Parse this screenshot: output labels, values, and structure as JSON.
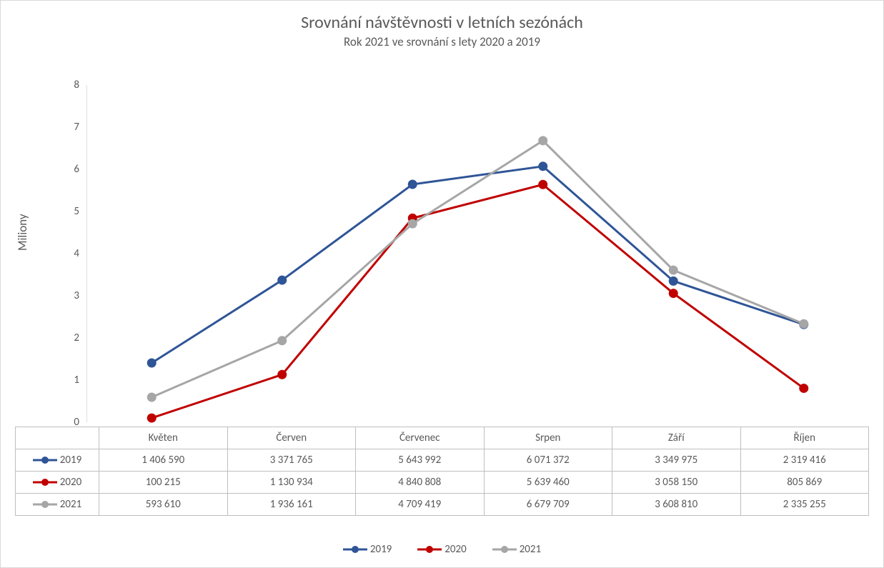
{
  "chart": {
    "type": "line",
    "title": "Srovnání návštěvnosti v letních sezónách",
    "subtitle": "Rok 2021 ve srovnání s lety 2020 a 2019",
    "ylabel": "Miliony",
    "categories": [
      "Květen",
      "Červen",
      "Červenec",
      "Srpen",
      "Září",
      "Říjen"
    ],
    "ylim": [
      0,
      8
    ],
    "ytick_step": 1,
    "yticks": [
      "0",
      "1",
      "2",
      "3",
      "4",
      "5",
      "6",
      "7",
      "8"
    ],
    "background_color": "#ffffff",
    "border_color": "#d9d9d9",
    "grid_color": "#d9d9d9",
    "axis_line_color": "#bfbfbf",
    "text_color": "#595959",
    "title_fontsize": 24,
    "subtitle_fontsize": 17,
    "label_fontsize": 17,
    "tick_fontsize": 15,
    "line_width": 3,
    "marker_size": 6,
    "marker_style": "circle",
    "series": [
      {
        "name": "2019",
        "color": "#2f5597",
        "values": [
          1406590,
          3371765,
          5643992,
          6071372,
          3349975,
          2319416
        ],
        "labels": [
          "1 406 590",
          "3 371 765",
          "5 643 992",
          "6 071 372",
          "3 349 975",
          "2 319 416"
        ]
      },
      {
        "name": "2020",
        "color": "#c00000",
        "values": [
          100215,
          1130934,
          4840808,
          5639460,
          3058150,
          805869
        ],
        "labels": [
          "100 215",
          "1 130 934",
          "4 840 808",
          "5 639 460",
          "3 058 150",
          "805 869"
        ]
      },
      {
        "name": "2021",
        "color": "#a6a6a6",
        "values": [
          593610,
          1936161,
          4709419,
          6679709,
          3608810,
          2335255
        ],
        "labels": [
          "593 610",
          "1 936 161",
          "4 709 419",
          "6 679 709",
          "3 608 810",
          "2 335 255"
        ]
      }
    ]
  }
}
